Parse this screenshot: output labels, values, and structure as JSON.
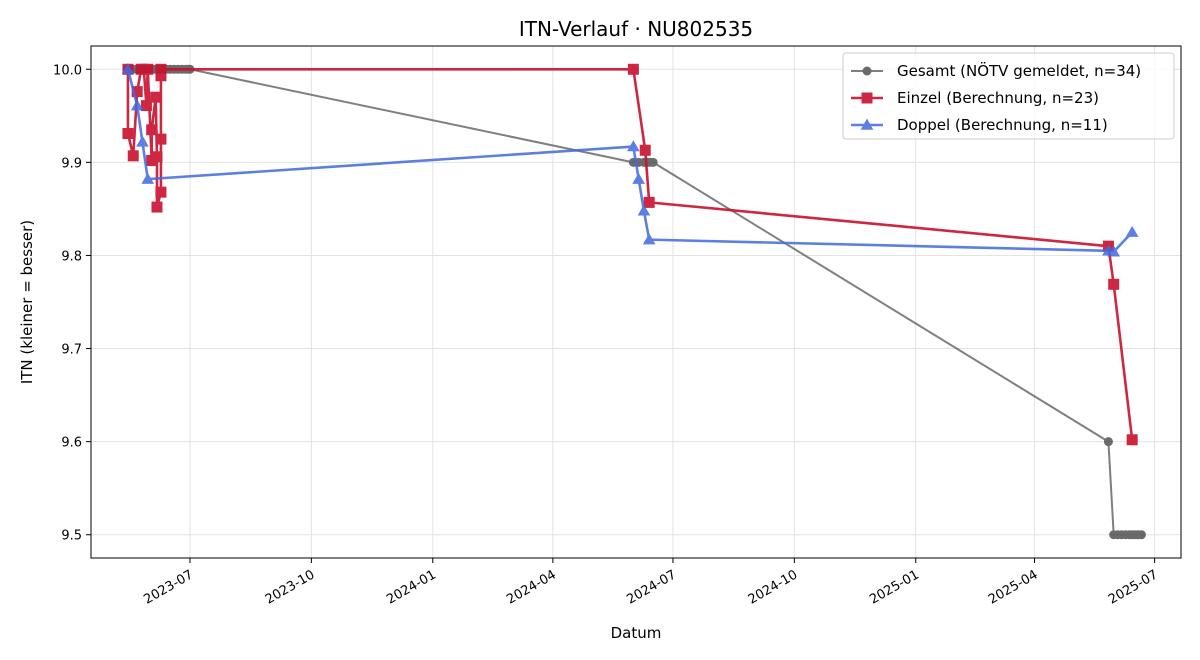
{
  "chart_data": {
    "type": "line",
    "title": "ITN-Verlauf · NU802535",
    "xlabel": "Datum",
    "ylabel": "ITN  (kleiner = besser)",
    "x_axis_type": "date",
    "xlim": [
      "2023-04-17",
      "2025-07-21"
    ],
    "ylim": [
      9.475,
      10.025
    ],
    "y_ticks": [
      9.5,
      9.6,
      9.7,
      9.8,
      9.9,
      10.0
    ],
    "y_tick_labels": [
      "9.5",
      "9.6",
      "9.7",
      "9.8",
      "9.9",
      "10.0"
    ],
    "x_ticks": [
      "2023-07-01",
      "2023-10-01",
      "2024-01-01",
      "2024-04-01",
      "2024-07-01",
      "2024-10-01",
      "2025-01-01",
      "2025-04-01",
      "2025-07-01"
    ],
    "x_tick_labels": [
      "2023-07",
      "2023-10",
      "2024-01",
      "2024-04",
      "2024-07",
      "2024-10",
      "2025-01",
      "2025-04",
      "2025-07"
    ],
    "grid": true,
    "legend_position": "top-right",
    "series": [
      {
        "name": "Gesamt (NÖTV gemeldet, n=34)",
        "color": "#555555",
        "marker": "circle",
        "points": [
          {
            "x": "2023-05-15",
            "y": 10.0
          },
          {
            "x": "2023-05-19",
            "y": 10.0
          },
          {
            "x": "2023-05-22",
            "y": 10.0
          },
          {
            "x": "2023-05-25",
            "y": 10.0
          },
          {
            "x": "2023-05-28",
            "y": 10.0
          },
          {
            "x": "2023-06-01",
            "y": 10.0
          },
          {
            "x": "2023-06-04",
            "y": 10.0
          },
          {
            "x": "2023-06-07",
            "y": 10.0
          },
          {
            "x": "2023-06-10",
            "y": 10.0
          },
          {
            "x": "2023-06-13",
            "y": 10.0
          },
          {
            "x": "2023-06-16",
            "y": 10.0
          },
          {
            "x": "2023-06-19",
            "y": 10.0
          },
          {
            "x": "2023-06-22",
            "y": 10.0
          },
          {
            "x": "2023-06-25",
            "y": 10.0
          },
          {
            "x": "2023-06-28",
            "y": 10.0
          },
          {
            "x": "2023-06-30",
            "y": 10.0
          },
          {
            "x": "2023-07-01",
            "y": 10.0
          },
          {
            "x": "2024-06-01",
            "y": 9.9
          },
          {
            "x": "2024-06-05",
            "y": 9.9
          },
          {
            "x": "2024-06-09",
            "y": 9.9
          },
          {
            "x": "2024-06-12",
            "y": 9.9
          },
          {
            "x": "2024-06-14",
            "y": 9.9
          },
          {
            "x": "2024-06-16",
            "y": 9.9
          },
          {
            "x": "2025-05-27",
            "y": 9.6
          },
          {
            "x": "2025-05-31",
            "y": 9.5
          },
          {
            "x": "2025-06-03",
            "y": 9.5
          },
          {
            "x": "2025-06-06",
            "y": 9.5
          },
          {
            "x": "2025-06-09",
            "y": 9.5
          },
          {
            "x": "2025-06-12",
            "y": 9.5
          },
          {
            "x": "2025-06-14",
            "y": 9.5
          },
          {
            "x": "2025-06-16",
            "y": 9.5
          },
          {
            "x": "2025-06-18",
            "y": 9.5
          },
          {
            "x": "2025-06-19",
            "y": 9.5
          },
          {
            "x": "2025-06-21",
            "y": 9.5
          }
        ]
      },
      {
        "name": "Einzel (Berechnung, n=23)",
        "color": "#c8102e",
        "marker": "square",
        "points": [
          {
            "x": "2023-05-15",
            "y": 10.0
          },
          {
            "x": "2023-05-15",
            "y": 9.931
          },
          {
            "x": "2023-05-19",
            "y": 9.907
          },
          {
            "x": "2023-05-22",
            "y": 9.976
          },
          {
            "x": "2023-05-25",
            "y": 10.0
          },
          {
            "x": "2023-05-27",
            "y": 10.0
          },
          {
            "x": "2023-05-29",
            "y": 9.961
          },
          {
            "x": "2023-05-30",
            "y": 10.0
          },
          {
            "x": "2023-06-02",
            "y": 9.902
          },
          {
            "x": "2023-06-02",
            "y": 9.935
          },
          {
            "x": "2023-06-05",
            "y": 9.97
          },
          {
            "x": "2023-06-06",
            "y": 9.906
          },
          {
            "x": "2023-06-06",
            "y": 9.852
          },
          {
            "x": "2023-06-09",
            "y": 9.868
          },
          {
            "x": "2023-06-09",
            "y": 9.925
          },
          {
            "x": "2023-06-09",
            "y": 9.993
          },
          {
            "x": "2023-06-09",
            "y": 10.0
          },
          {
            "x": "2024-06-01",
            "y": 10.0
          },
          {
            "x": "2024-06-10",
            "y": 9.913
          },
          {
            "x": "2024-06-13",
            "y": 9.857
          },
          {
            "x": "2025-05-27",
            "y": 9.81
          },
          {
            "x": "2025-05-31",
            "y": 9.769
          },
          {
            "x": "2025-06-14",
            "y": 9.602
          }
        ]
      },
      {
        "name": "Doppel (Berechnung, n=11)",
        "color": "#4169e1",
        "marker": "triangle",
        "points": [
          {
            "x": "2023-05-15",
            "y": 10.0
          },
          {
            "x": "2023-05-22",
            "y": 9.961
          },
          {
            "x": "2023-05-26",
            "y": 9.922
          },
          {
            "x": "2023-05-30",
            "y": 9.882
          },
          {
            "x": "2024-06-01",
            "y": 9.917
          },
          {
            "x": "2024-06-05",
            "y": 9.882
          },
          {
            "x": "2024-06-09",
            "y": 9.848
          },
          {
            "x": "2024-06-13",
            "y": 9.817
          },
          {
            "x": "2025-05-27",
            "y": 9.805
          },
          {
            "x": "2025-05-31",
            "y": 9.804
          },
          {
            "x": "2025-06-14",
            "y": 9.825
          }
        ]
      }
    ]
  }
}
